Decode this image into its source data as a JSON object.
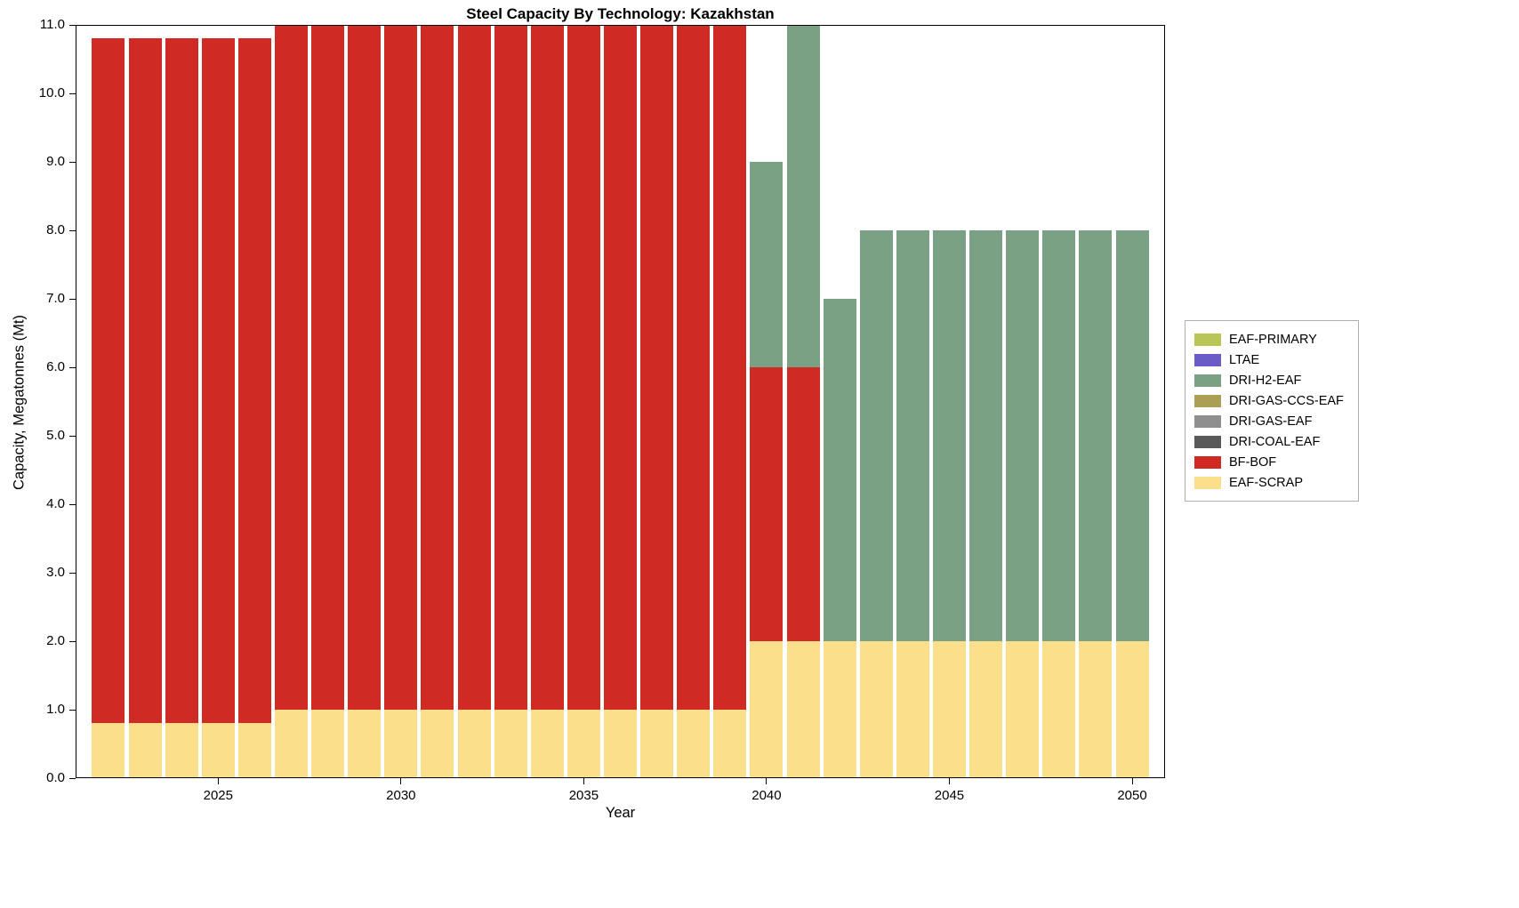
{
  "title": "Steel Capacity By Technology: Kazakhstan",
  "axes": {
    "xlabel": "Year",
    "ylabel": "Capacity, Megatonnes (Mt)"
  },
  "chart_data": {
    "type": "bar",
    "stacked": true,
    "title": "Steel Capacity By Technology: Kazakhstan",
    "xlabel": "Year",
    "ylabel": "Capacity, Megatonnes (Mt)",
    "ylim": [
      0,
      11
    ],
    "xlim": [
      2021.1,
      2050.9
    ],
    "grid": false,
    "legend_position": "right-outside",
    "x": [
      2022,
      2023,
      2024,
      2025,
      2026,
      2027,
      2028,
      2029,
      2030,
      2031,
      2032,
      2033,
      2034,
      2035,
      2036,
      2037,
      2038,
      2039,
      2040,
      2041,
      2042,
      2043,
      2044,
      2045,
      2046,
      2047,
      2048,
      2049,
      2050
    ],
    "series": [
      {
        "name": "EAF-SCRAP",
        "color": "#fbdf8b",
        "values": [
          0.8,
          0.8,
          0.8,
          0.8,
          0.8,
          1.0,
          1.0,
          1.0,
          1.0,
          1.0,
          1.0,
          1.0,
          1.0,
          1.0,
          1.0,
          1.0,
          1.0,
          1.0,
          2.0,
          2.0,
          2.0,
          2.0,
          2.0,
          2.0,
          2.0,
          2.0,
          2.0,
          2.0,
          2.0
        ]
      },
      {
        "name": "BF-BOF",
        "color": "#d02a25",
        "values": [
          10.0,
          10.0,
          10.0,
          10.0,
          10.0,
          10.0,
          10.0,
          10.0,
          10.0,
          10.0,
          10.0,
          10.0,
          10.0,
          10.0,
          10.0,
          10.0,
          10.0,
          10.0,
          4.0,
          4.0,
          0,
          0,
          0,
          0,
          0,
          0,
          0,
          0,
          0
        ]
      },
      {
        "name": "DRI-H2-EAF",
        "color": "#7aa183",
        "values": [
          0,
          0,
          0,
          0,
          0,
          0,
          0,
          0,
          0,
          0,
          0,
          0,
          0,
          0,
          0,
          0,
          0,
          0,
          3.0,
          5.0,
          5.0,
          6.0,
          6.0,
          6.0,
          6.0,
          6.0,
          6.0,
          6.0,
          6.0
        ]
      }
    ],
    "totals": [
      10.8,
      10.8,
      10.8,
      10.8,
      10.8,
      11.0,
      11.0,
      11.0,
      11.0,
      11.0,
      11.0,
      11.0,
      11.0,
      11.0,
      11.0,
      11.0,
      11.0,
      11.0,
      9.0,
      11.0,
      7.0,
      8.0,
      8.0,
      8.0,
      8.0,
      8.0,
      8.0,
      8.0,
      8.0
    ],
    "yticks": [
      0,
      1,
      2,
      3,
      4,
      5,
      6,
      7,
      8,
      9,
      10,
      11
    ],
    "ytick_labels": [
      "0.0",
      "1.0",
      "2.0",
      "3.0",
      "4.0",
      "5.0",
      "6.0",
      "7.0",
      "8.0",
      "9.0",
      "10.0",
      "11.0"
    ],
    "xticks": [
      2025,
      2030,
      2035,
      2040,
      2045,
      2050
    ],
    "xtick_labels": [
      "2025",
      "2030",
      "2035",
      "2040",
      "2045",
      "2050"
    ],
    "legend": [
      {
        "label": "EAF-PRIMARY",
        "color": "#b9c554"
      },
      {
        "label": "LTAE",
        "color": "#6a5bc7"
      },
      {
        "label": "DRI-H2-EAF",
        "color": "#7aa183"
      },
      {
        "label": "DRI-GAS-CCS-EAF",
        "color": "#ab9f55"
      },
      {
        "label": "DRI-GAS-EAF",
        "color": "#8f8f8f"
      },
      {
        "label": "DRI-COAL-EAF",
        "color": "#595959"
      },
      {
        "label": "BF-BOF",
        "color": "#d02a25"
      },
      {
        "label": "EAF-SCRAP",
        "color": "#fbdf8b"
      }
    ]
  }
}
